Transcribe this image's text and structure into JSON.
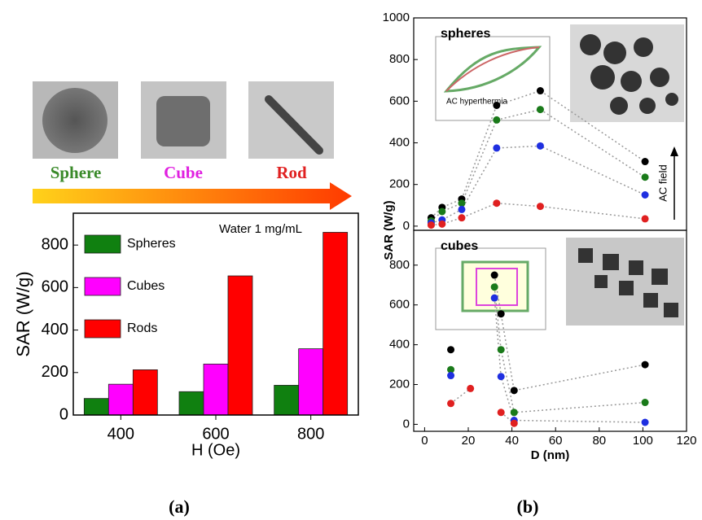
{
  "figure": {
    "shape_labels": [
      "Sphere",
      "Cube",
      "Rod"
    ],
    "panel_a": "(a)",
    "panel_b": "(b)"
  },
  "chart_data": [
    {
      "type": "bar",
      "annotation": "Water 1 mg/mL",
      "xlabel": "H (Oe)",
      "ylabel": "SAR (W/g)",
      "categories": [
        "400",
        "600",
        "800"
      ],
      "series": [
        {
          "name": "Spheres",
          "color": "#108010",
          "values": [
            78,
            110,
            140
          ]
        },
        {
          "name": "Cubes",
          "color": "#ff00ff",
          "values": [
            145,
            240,
            312
          ]
        },
        {
          "name": "Rods",
          "color": "#ff0000",
          "values": [
            213,
            655,
            860
          ]
        }
      ],
      "ylim": [
        0,
        950
      ],
      "yticks": [
        0,
        200,
        400,
        600,
        800
      ],
      "legend": "upper-left"
    },
    {
      "type": "scatter",
      "label": "spheres",
      "inset_label": "AC hyperthermia",
      "arrow_label": "AC field",
      "ylabel": "SAR (W/g)",
      "x": [
        3,
        8,
        17,
        33,
        53,
        101
      ],
      "series": [
        {
          "color": "#000000",
          "values": [
            40,
            90,
            130,
            580,
            650,
            310
          ]
        },
        {
          "color": "#1a7a1a",
          "values": [
            25,
            70,
            110,
            510,
            560,
            235
          ]
        },
        {
          "color": "#1f2fe0",
          "values": [
            15,
            30,
            80,
            375,
            385,
            150
          ]
        },
        {
          "color": "#e02020",
          "values": [
            5,
            10,
            40,
            110,
            95,
            35
          ]
        }
      ],
      "xlim": [
        -5,
        120
      ],
      "ylim": [
        -20,
        1000
      ],
      "yticks": [
        0,
        200,
        400,
        600,
        800,
        1000
      ],
      "line_style": "dotted"
    },
    {
      "type": "scatter",
      "label": "cubes",
      "xlabel": "D (nm)",
      "x": [
        12,
        21,
        32,
        35,
        41,
        101
      ],
      "series": [
        {
          "color": "#000000",
          "values": [
            375,
            null,
            750,
            555,
            170,
            300
          ]
        },
        {
          "color": "#1a7a1a",
          "values": [
            275,
            null,
            690,
            375,
            60,
            110
          ]
        },
        {
          "color": "#1f2fe0",
          "values": [
            245,
            null,
            635,
            240,
            20,
            10
          ]
        },
        {
          "color": "#e02020",
          "values": [
            105,
            180,
            null,
            60,
            5,
            null
          ]
        }
      ],
      "xlim": [
        -5,
        120
      ],
      "ylim": [
        -35,
        975
      ],
      "xticks": [
        0,
        20,
        40,
        60,
        80,
        100,
        120
      ],
      "yticks": [
        0,
        200,
        400,
        600,
        800
      ],
      "line_style": "dotted"
    }
  ]
}
